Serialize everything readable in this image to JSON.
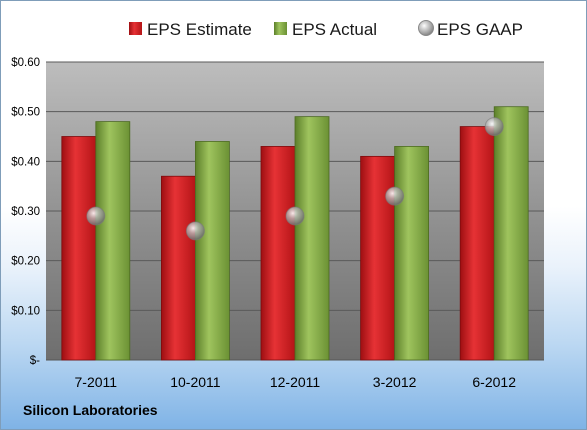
{
  "chart_data": {
    "type": "bar",
    "title": "",
    "categories": [
      "7-2011",
      "10-2011",
      "12-2011",
      "3-2012",
      "6-2012"
    ],
    "series": [
      {
        "name": "EPS Estimate",
        "kind": "bar",
        "color": "#c8171b",
        "values": [
          0.45,
          0.37,
          0.43,
          0.41,
          0.47
        ]
      },
      {
        "name": "EPS Actual",
        "kind": "bar",
        "color": "#7aa23e",
        "values": [
          0.48,
          0.44,
          0.49,
          0.43,
          0.51
        ]
      },
      {
        "name": "EPS GAAP",
        "kind": "marker",
        "color": "#a8a8a8",
        "values": [
          0.29,
          0.26,
          0.29,
          0.33,
          0.47
        ]
      }
    ],
    "yticks": [
      "$-",
      "$0.10",
      "$0.20",
      "$0.30",
      "$0.40",
      "$0.50",
      "$0.60"
    ],
    "ylim": [
      0,
      0.6
    ],
    "grid": true,
    "legend": "top"
  },
  "company": "Silicon Laboratories"
}
